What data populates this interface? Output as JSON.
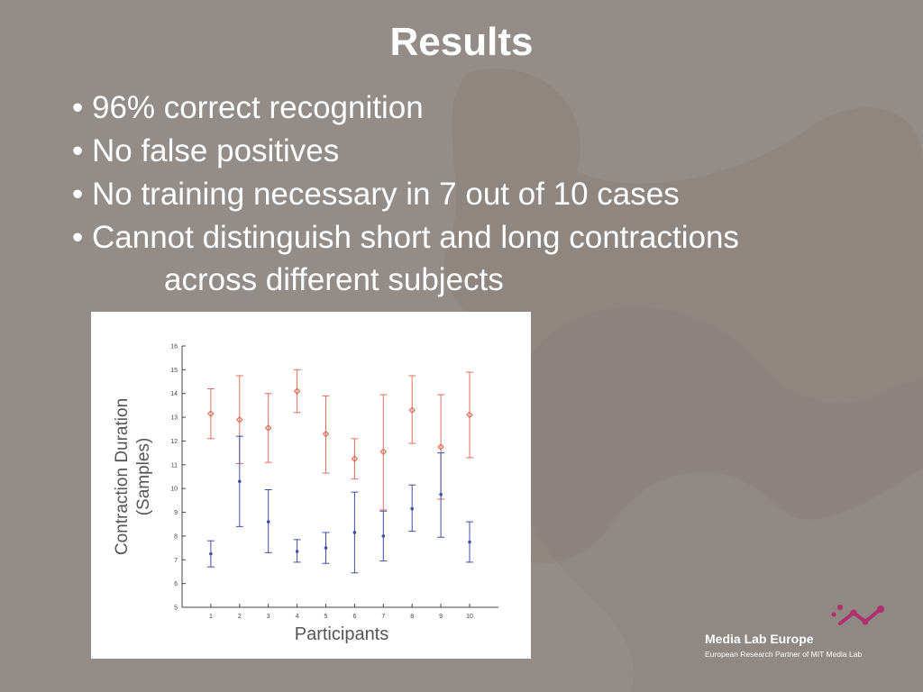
{
  "slide": {
    "title": "Results",
    "bullets": [
      "96% correct recognition",
      "No false positives",
      "No training necessary in 7 out of 10 cases",
      "Cannot distinguish short and long contractions"
    ],
    "bullet_continuation": "across different subjects"
  },
  "brand": {
    "name": "Media Lab Europe",
    "tagline": "European Research Partner of MIT Media Lab",
    "accent": "#b0306f"
  },
  "colors": {
    "background": "#948c86",
    "text": "#ffffff",
    "series_long": "#e0705c",
    "series_short": "#3f4fa8"
  },
  "chart_data": {
    "type": "scatter",
    "xlabel": "Participants",
    "ylabel": "Contraction Duration (Samples)",
    "xticks": [
      "1",
      "2",
      "3",
      "4",
      "5",
      "6",
      "7",
      "8",
      "9",
      "10"
    ],
    "yticks": [
      "5",
      "6",
      "7",
      "8",
      "9",
      "10",
      "11",
      "12",
      "13",
      "14",
      "15",
      "16"
    ],
    "ylim": [
      5,
      16
    ],
    "x": [
      1,
      2,
      3,
      4,
      5,
      6,
      7,
      8,
      9,
      10
    ],
    "series": [
      {
        "color": "#e0705c",
        "marker": "diamond",
        "values": [
          13.15,
          12.9,
          12.55,
          14.1,
          12.3,
          11.25,
          11.55,
          13.3,
          11.75,
          13.1
        ],
        "err_low": [
          12.1,
          11.05,
          11.1,
          13.2,
          10.65,
          10.4,
          9.1,
          11.9,
          9.55,
          11.3
        ],
        "err_high": [
          14.2,
          14.75,
          14.0,
          15.0,
          13.9,
          12.1,
          13.95,
          14.75,
          13.95,
          14.9
        ]
      },
      {
        "color": "#3f4fa8",
        "marker": "dot",
        "values": [
          7.25,
          10.3,
          8.6,
          7.35,
          7.5,
          8.15,
          8.0,
          9.15,
          9.75,
          7.75
        ],
        "err_low": [
          6.7,
          8.4,
          7.3,
          6.9,
          6.85,
          6.45,
          6.95,
          8.2,
          7.95,
          6.9
        ],
        "err_high": [
          7.8,
          12.2,
          9.95,
          7.85,
          8.15,
          9.85,
          9.05,
          10.15,
          11.5,
          8.6
        ]
      }
    ]
  }
}
